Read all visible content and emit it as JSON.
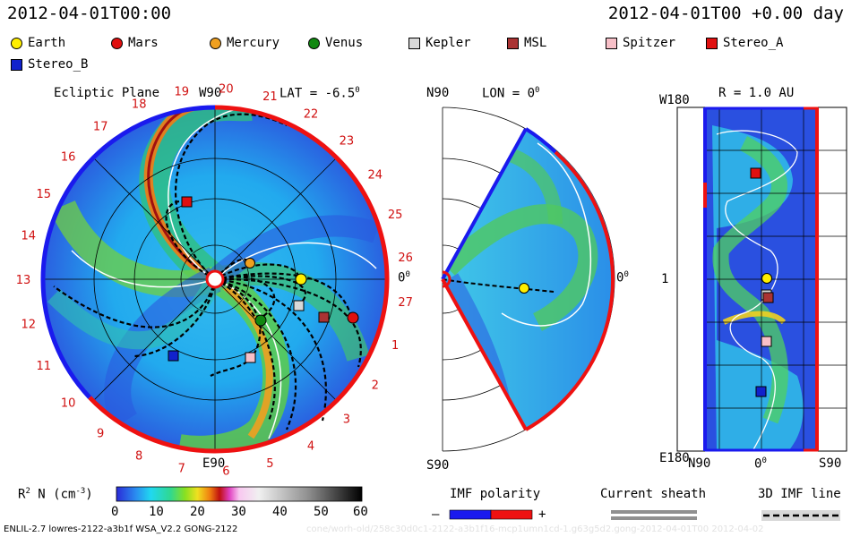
{
  "header": {
    "left_title": "2012-04-01T00:00",
    "right_title": "2012-04-01T00 +0.00 day"
  },
  "legend": [
    {
      "name": "Earth",
      "color": "#ffee00",
      "shape": "circle"
    },
    {
      "name": "Mars",
      "color": "#e01010",
      "shape": "circle"
    },
    {
      "name": "Mercury",
      "color": "#f0a020",
      "shape": "circle"
    },
    {
      "name": "Venus",
      "color": "#118811",
      "shape": "circle"
    },
    {
      "name": "Kepler",
      "color": "#d8d8d8",
      "shape": "square"
    },
    {
      "name": "MSL",
      "color": "#aa3333",
      "shape": "square"
    },
    {
      "name": "Spitzer",
      "color": "#f8c0c8",
      "shape": "square"
    },
    {
      "name": "Stereo_A",
      "color": "#e01010",
      "shape": "square"
    },
    {
      "name": "Stereo_B",
      "color": "#1122cc",
      "shape": "square"
    }
  ],
  "ecliptic": {
    "title": "Ecliptic Plane",
    "top_label": "W90",
    "bottom_label": "E90",
    "right_label": "0",
    "right_label_sup": "0",
    "lat_label": "LAT = -6.5",
    "lat_sup": "0",
    "carrington_numbers": [
      "19",
      "20",
      "21",
      "22",
      "23",
      "24",
      "25",
      "26",
      "27",
      "1",
      "2",
      "3",
      "4",
      "5",
      "6",
      "7",
      "8",
      "9",
      "10",
      "11",
      "12",
      "13",
      "14",
      "15",
      "16",
      "17",
      "18"
    ]
  },
  "meridional": {
    "top_label": "N90",
    "bottom_label": "S90",
    "lon_label": "LON = 0",
    "lon_sup": "0",
    "right_label": "0",
    "right_label_sup": "0"
  },
  "sphere": {
    "title": "R = 1.0 AU",
    "top_left": "W180",
    "bottom_left": "E180",
    "mid_left": "1",
    "bottom_x": [
      "N90",
      "0",
      "S90"
    ],
    "bottom_x_sup": "0"
  },
  "colorbar": {
    "label_prefix": "R",
    "label_sup": "2",
    "label_suffix": "N (cm",
    "label_unit_sup": "-3",
    "label_close": ")",
    "ticks": [
      "0",
      "10",
      "20",
      "30",
      "40",
      "50",
      "60"
    ]
  },
  "imf": {
    "title": "IMF polarity",
    "minus": "–",
    "plus": "+",
    "colors": {
      "negative": "#1a1aee",
      "positive": "#ee1111"
    }
  },
  "current_sheath": {
    "title": "Current sheath"
  },
  "imf_line": {
    "title": "3D IMF line"
  },
  "footer": {
    "left": "ENLIL-2.7 lowres-2122-a3b1f WSA_V2.2 GONG-2122",
    "right": "cone/worh-old/258c30d0c1-2122-a3b1f16-mcp1umn1cd-1.g63g5d2.gong-2012-04-01T00    2012-04-02"
  }
}
